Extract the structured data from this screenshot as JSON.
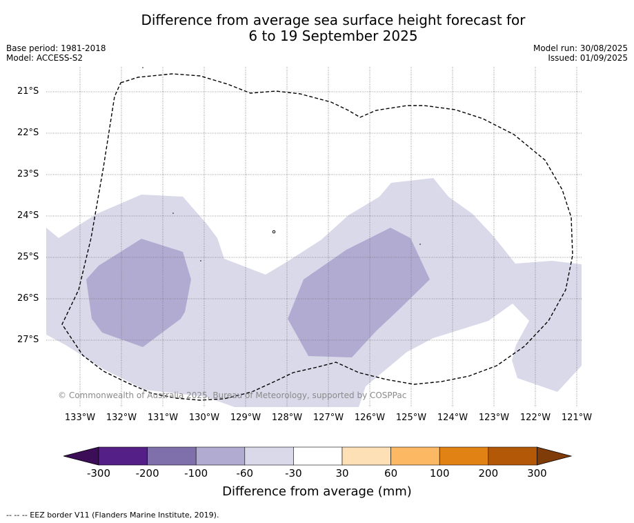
{
  "title": {
    "line1": "Difference from average sea surface height forecast for",
    "line2": "6 to 19 September 2025"
  },
  "meta": {
    "base_period": "Base period: 1981-2018",
    "model": "Model: ACCESS-S2",
    "model_run": "Model run: 30/08/2025",
    "issued": "Issued: 01/09/2025"
  },
  "map": {
    "lat_labels": [
      "21°S",
      "22°S",
      "23°S",
      "24°S",
      "25°S",
      "26°S",
      "27°S"
    ],
    "lon_labels": [
      "133°W",
      "132°W",
      "131°W",
      "130°W",
      "129°W",
      "128°W",
      "127°W",
      "126°W",
      "125°W",
      "124°W",
      "123°W",
      "122°W",
      "121°W"
    ],
    "copyright": "© Commonwealth of Australia 2025, Bureau of Meteorology, supported by COSPPac",
    "colors": {
      "band_neg60_neg30": "#d9d9ea",
      "band_neg100_neg60": "#b1abd2",
      "eez_border": "#000000",
      "grid": "#777777"
    }
  },
  "colorbar": {
    "ticks": [
      "-300",
      "-200",
      "-100",
      "-60",
      "-30",
      "30",
      "60",
      "100",
      "200",
      "300"
    ],
    "colors": [
      "#3d0e58",
      "#542088",
      "#7f70ab",
      "#b1abd2",
      "#d9d9ea",
      "#ffffff",
      "#fee0b6",
      "#fdb863",
      "#e08214",
      "#b35806",
      "#7f3b08"
    ],
    "title": "Difference from average (mm)"
  },
  "footnote": "--  --  -- EEZ border V11 (Flanders Marine Institute, 2019)."
}
